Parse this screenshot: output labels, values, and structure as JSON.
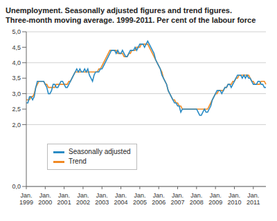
{
  "chart_data": {
    "type": "line",
    "title": "Unemployment. Seasonally adjusted figures and trend figures.",
    "subtitle": "Three-month moving average. 1999-2011. Per cent of the labour force",
    "categories": [
      "Jan. 1999",
      null,
      null,
      null,
      null,
      null,
      null,
      null,
      null,
      null,
      null,
      null,
      "Jan. 2000",
      null,
      null,
      null,
      null,
      null,
      null,
      null,
      null,
      null,
      null,
      null,
      "Jan. 2001",
      null,
      null,
      null,
      null,
      null,
      null,
      null,
      null,
      null,
      null,
      null,
      "Jan. 2002",
      null,
      null,
      null,
      null,
      null,
      null,
      null,
      null,
      null,
      null,
      null,
      "Jan. 2003",
      null,
      null,
      null,
      null,
      null,
      null,
      null,
      null,
      null,
      null,
      null,
      "Jan. 2004",
      null,
      null,
      null,
      null,
      null,
      null,
      null,
      null,
      null,
      null,
      null,
      "Jan. 2005",
      null,
      null,
      null,
      null,
      null,
      null,
      null,
      null,
      null,
      null,
      null,
      "Jan. 2006",
      null,
      null,
      null,
      null,
      null,
      null,
      null,
      null,
      null,
      null,
      null,
      "Jan. 2007",
      null,
      null,
      null,
      null,
      null,
      null,
      null,
      null,
      null,
      null,
      null,
      "Jan. 2008",
      null,
      null,
      null,
      null,
      null,
      null,
      null,
      null,
      null,
      null,
      null,
      "Jan. 2009",
      null,
      null,
      null,
      null,
      null,
      null,
      null,
      null,
      null,
      null,
      null,
      "Jan. 2010",
      null,
      null,
      null,
      null,
      null,
      null,
      null,
      null,
      null,
      null,
      null,
      "Jan. 2011",
      null,
      null,
      null,
      null,
      null,
      null,
      null,
      null
    ],
    "series": [
      {
        "name": "Seasonally adjusted",
        "color": "#2a8bc4",
        "values": [
          2.7,
          2.7,
          2.9,
          2.9,
          2.8,
          2.9,
          3.2,
          3.4,
          3.4,
          3.4,
          3.4,
          3.4,
          3.3,
          3.2,
          3.0,
          3.0,
          3.1,
          3.3,
          3.3,
          3.2,
          3.2,
          3.3,
          3.4,
          3.4,
          3.3,
          3.2,
          3.2,
          3.3,
          3.4,
          3.5,
          3.6,
          3.7,
          3.8,
          3.7,
          3.8,
          3.7,
          3.7,
          3.8,
          3.7,
          3.8,
          3.6,
          3.5,
          3.4,
          3.6,
          3.7,
          3.7,
          3.7,
          3.8,
          3.8,
          3.9,
          4.0,
          4.1,
          4.2,
          4.3,
          4.4,
          4.4,
          4.4,
          4.3,
          4.4,
          4.3,
          4.3,
          4.4,
          4.3,
          4.2,
          4.2,
          4.3,
          4.4,
          4.4,
          4.4,
          4.5,
          4.4,
          4.5,
          4.6,
          4.6,
          4.6,
          4.5,
          4.6,
          4.7,
          4.6,
          4.5,
          4.4,
          4.3,
          4.1,
          4.0,
          3.9,
          3.8,
          3.6,
          3.5,
          3.4,
          3.3,
          3.1,
          3.0,
          2.9,
          2.8,
          2.7,
          2.7,
          2.6,
          2.6,
          2.4,
          2.5,
          2.5,
          2.5,
          2.5,
          2.5,
          2.5,
          2.5,
          2.5,
          2.5,
          2.5,
          2.4,
          2.3,
          2.3,
          2.4,
          2.5,
          2.4,
          2.4,
          2.5,
          2.6,
          2.8,
          2.9,
          3.0,
          3.1,
          3.1,
          3.1,
          3.0,
          3.1,
          3.2,
          3.2,
          3.3,
          3.3,
          3.2,
          3.3,
          3.4,
          3.5,
          3.6,
          3.6,
          3.6,
          3.5,
          3.6,
          3.5,
          3.6,
          3.5,
          3.5,
          3.4,
          3.3,
          3.3,
          3.3,
          3.4,
          3.4,
          3.3,
          3.3,
          3.2,
          3.2
        ]
      },
      {
        "name": "Trend",
        "color": "#f08a24",
        "values": [
          2.8,
          2.8,
          2.8,
          2.9,
          2.9,
          3.0,
          3.2,
          3.3,
          3.4,
          3.4,
          3.4,
          3.4,
          3.3,
          3.3,
          3.2,
          3.2,
          3.2,
          3.2,
          3.2,
          3.3,
          3.3,
          3.3,
          3.3,
          3.3,
          3.3,
          3.3,
          3.3,
          3.4,
          3.4,
          3.5,
          3.6,
          3.7,
          3.7,
          3.7,
          3.7,
          3.7,
          3.7,
          3.7,
          3.7,
          3.7,
          3.7,
          3.7,
          3.7,
          3.7,
          3.7,
          3.7,
          3.8,
          3.8,
          3.9,
          4.0,
          4.1,
          4.2,
          4.3,
          4.4,
          4.4,
          4.4,
          4.4,
          4.4,
          4.3,
          4.3,
          4.3,
          4.3,
          4.2,
          4.2,
          4.2,
          4.3,
          4.3,
          4.4,
          4.4,
          4.4,
          4.5,
          4.5,
          4.5,
          4.6,
          4.6,
          4.6,
          4.6,
          4.6,
          4.5,
          4.4,
          4.3,
          4.2,
          4.1,
          4.0,
          3.9,
          3.8,
          3.7,
          3.5,
          3.4,
          3.3,
          3.1,
          3.0,
          2.9,
          2.8,
          2.8,
          2.7,
          2.7,
          2.6,
          2.6,
          2.5,
          2.5,
          2.5,
          2.5,
          2.5,
          2.5,
          2.5,
          2.5,
          2.5,
          2.5,
          2.5,
          2.5,
          2.5,
          2.5,
          2.5,
          2.5,
          2.5,
          2.6,
          2.7,
          2.8,
          2.9,
          3.0,
          3.0,
          3.1,
          3.1,
          3.1,
          3.1,
          3.2,
          3.2,
          3.3,
          3.3,
          3.3,
          3.4,
          3.4,
          3.5,
          3.5,
          3.6,
          3.6,
          3.6,
          3.6,
          3.6,
          3.6,
          3.6,
          3.5,
          3.4,
          3.4,
          3.3,
          3.3,
          3.3,
          3.3,
          3.4,
          3.4,
          3.4,
          3.3
        ]
      }
    ],
    "ylim": [
      0,
      5
    ],
    "yticks": [
      {
        "value": 0,
        "label": "0,0"
      },
      {
        "value": 2,
        "label": "2,0"
      },
      {
        "value": 2.5,
        "label": "2,5"
      },
      {
        "value": 3,
        "label": "3,0"
      },
      {
        "value": 3.5,
        "label": "3,5"
      },
      {
        "value": 4,
        "label": "4,0"
      },
      {
        "value": 4.5,
        "label": "4,5"
      },
      {
        "value": 5,
        "label": "5,0"
      }
    ],
    "grid": true,
    "legend": "lower left"
  }
}
